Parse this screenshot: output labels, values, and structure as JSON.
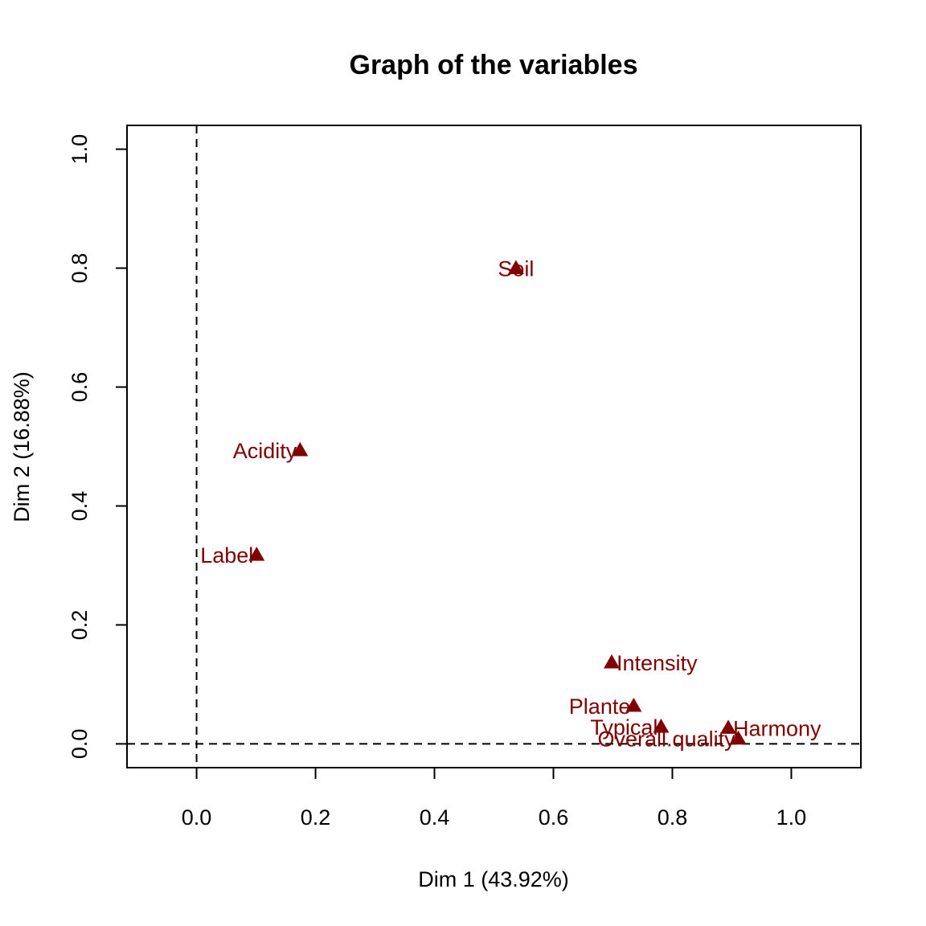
{
  "chart_data": {
    "type": "scatter",
    "title": "Graph of the variables",
    "xlabel": "Dim 1 (43.92%)",
    "ylabel": "Dim 2 (16.88%)",
    "xlim": [
      -0.117,
      1.117
    ],
    "ylim": [
      -0.04,
      1.04
    ],
    "xticks": [
      0.0,
      0.2,
      0.4,
      0.6,
      0.8,
      1.0
    ],
    "xtick_labels": [
      "0.0",
      "0.2",
      "0.4",
      "0.6",
      "0.8",
      "1.0"
    ],
    "yticks": [
      0.0,
      0.2,
      0.4,
      0.6,
      0.8,
      1.0
    ],
    "ytick_labels": [
      "0.0",
      "0.2",
      "0.4",
      "0.6",
      "0.8",
      "1.0"
    ],
    "reference_lines": {
      "x": 0,
      "y": 0,
      "style": "dashed"
    },
    "grid": false,
    "marker": "triangle",
    "color": "#800000",
    "points": [
      {
        "label": "Soil",
        "x": 0.537,
        "y": 0.8,
        "label_pos": "center"
      },
      {
        "label": "Acidity",
        "x": 0.174,
        "y": 0.494,
        "label_pos": "left"
      },
      {
        "label": "Label",
        "x": 0.101,
        "y": 0.318,
        "label_pos": "left"
      },
      {
        "label": "Intensity",
        "x": 0.698,
        "y": 0.137,
        "label_pos": "right"
      },
      {
        "label": "Plante",
        "x": 0.735,
        "y": 0.064,
        "label_pos": "left"
      },
      {
        "label": "Typical",
        "x": 0.781,
        "y": 0.029,
        "label_pos": "left"
      },
      {
        "label": "Harmony",
        "x": 0.894,
        "y": 0.027,
        "label_pos": "right"
      },
      {
        "label": "Overall.quality",
        "x": 0.911,
        "y": 0.009,
        "label_pos": "left"
      }
    ]
  }
}
